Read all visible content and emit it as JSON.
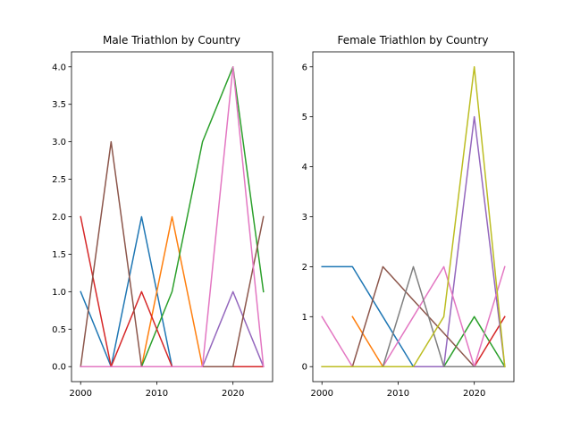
{
  "chart_data": [
    {
      "type": "line",
      "title": "Male Triathlon by Country",
      "x": [
        2000,
        2004,
        2008,
        2012,
        2016,
        2020,
        2024
      ],
      "xticks": [
        "2000",
        "2010",
        "2020"
      ],
      "xtick_values": [
        2000,
        2010,
        2020
      ],
      "yticks": [
        "0.0",
        "0.5",
        "1.0",
        "1.5",
        "2.0",
        "2.5",
        "3.0",
        "3.5",
        "4.0"
      ],
      "ytick_values": [
        0,
        0.5,
        1,
        1.5,
        2,
        2.5,
        3,
        3.5,
        4
      ],
      "xlim": [
        1998.8,
        2025.2
      ],
      "ylim": [
        -0.2,
        4.2
      ],
      "series": [
        {
          "color": "#1f77b4",
          "values": [
            1,
            0,
            2,
            0,
            0,
            0,
            0
          ]
        },
        {
          "color": "#ff7f0e",
          "values": [
            0,
            0,
            0,
            2,
            0,
            0,
            0
          ]
        },
        {
          "color": "#2ca02c",
          "values": [
            0,
            0,
            0,
            1,
            3,
            4,
            1
          ]
        },
        {
          "color": "#d62728",
          "values": [
            2,
            0,
            1,
            0,
            0,
            0,
            0
          ]
        },
        {
          "color": "#9467bd",
          "values": [
            0,
            0,
            0,
            0,
            0,
            1,
            0
          ]
        },
        {
          "color": "#8c564b",
          "values": [
            0,
            3,
            0,
            0,
            0,
            0,
            2
          ]
        },
        {
          "color": "#e377c2",
          "values": [
            0,
            0,
            0,
            0,
            0,
            4,
            0
          ]
        }
      ]
    },
    {
      "type": "line",
      "title": "Female Triathlon by Country",
      "xticks": [
        "2000",
        "2010",
        "2020"
      ],
      "xtick_values": [
        2000,
        2010,
        2020
      ],
      "yticks": [
        "0",
        "1",
        "2",
        "3",
        "4",
        "5",
        "6"
      ],
      "ytick_values": [
        0,
        1,
        2,
        3,
        4,
        5,
        6
      ],
      "xlim": [
        1998.8,
        2025.2
      ],
      "ylim": [
        -0.3,
        6.3
      ],
      "series": [
        {
          "color": "#1f77b4",
          "points": [
            [
              2000,
              2
            ],
            [
              2004,
              2
            ],
            [
              2008,
              1
            ],
            [
              2012,
              0
            ],
            [
              2016,
              0
            ],
            [
              2020,
              0
            ],
            [
              2024,
              0
            ]
          ]
        },
        {
          "color": "#ff7f0e",
          "points": [
            [
              2004,
              1
            ],
            [
              2008,
              0
            ],
            [
              2012,
              0
            ],
            [
              2016,
              0
            ],
            [
              2020,
              0
            ],
            [
              2024,
              0
            ]
          ]
        },
        {
          "color": "#2ca02c",
          "points": [
            [
              2000,
              0
            ],
            [
              2004,
              0
            ],
            [
              2008,
              0
            ],
            [
              2012,
              0
            ],
            [
              2016,
              0
            ],
            [
              2020,
              1
            ],
            [
              2024,
              0
            ]
          ]
        },
        {
          "color": "#d62728",
          "points": [
            [
              2000,
              0
            ],
            [
              2004,
              0
            ],
            [
              2008,
              0
            ],
            [
              2012,
              0
            ],
            [
              2016,
              0
            ],
            [
              2020,
              0
            ],
            [
              2024,
              1
            ]
          ]
        },
        {
          "color": "#9467bd",
          "points": [
            [
              2000,
              0
            ],
            [
              2004,
              0
            ],
            [
              2008,
              0
            ],
            [
              2012,
              0
            ],
            [
              2016,
              0
            ],
            [
              2020,
              5
            ],
            [
              2024,
              0
            ]
          ]
        },
        {
          "color": "#8c564b",
          "points": [
            [
              2000,
              0
            ],
            [
              2004,
              0
            ],
            [
              2008,
              2
            ],
            [
              2012,
              1.33
            ],
            [
              2016,
              0.67
            ],
            [
              2020,
              0
            ],
            [
              2024,
              0
            ]
          ]
        },
        {
          "color": "#e377c2",
          "points": [
            [
              2000,
              1
            ],
            [
              2004,
              0
            ],
            [
              2008,
              0
            ],
            [
              2012,
              1
            ],
            [
              2016,
              2
            ],
            [
              2020,
              0
            ],
            [
              2024,
              2
            ]
          ]
        },
        {
          "color": "#7f7f7f",
          "points": [
            [
              2000,
              0
            ],
            [
              2004,
              0
            ],
            [
              2008,
              0
            ],
            [
              2012,
              2
            ],
            [
              2016,
              0
            ],
            [
              2020,
              0
            ],
            [
              2024,
              0
            ]
          ]
        },
        {
          "color": "#bcbd22",
          "points": [
            [
              2000,
              0
            ],
            [
              2004,
              0
            ],
            [
              2008,
              0
            ],
            [
              2012,
              0
            ],
            [
              2016,
              1
            ],
            [
              2020,
              6
            ],
            [
              2024,
              0
            ]
          ]
        }
      ]
    }
  ]
}
